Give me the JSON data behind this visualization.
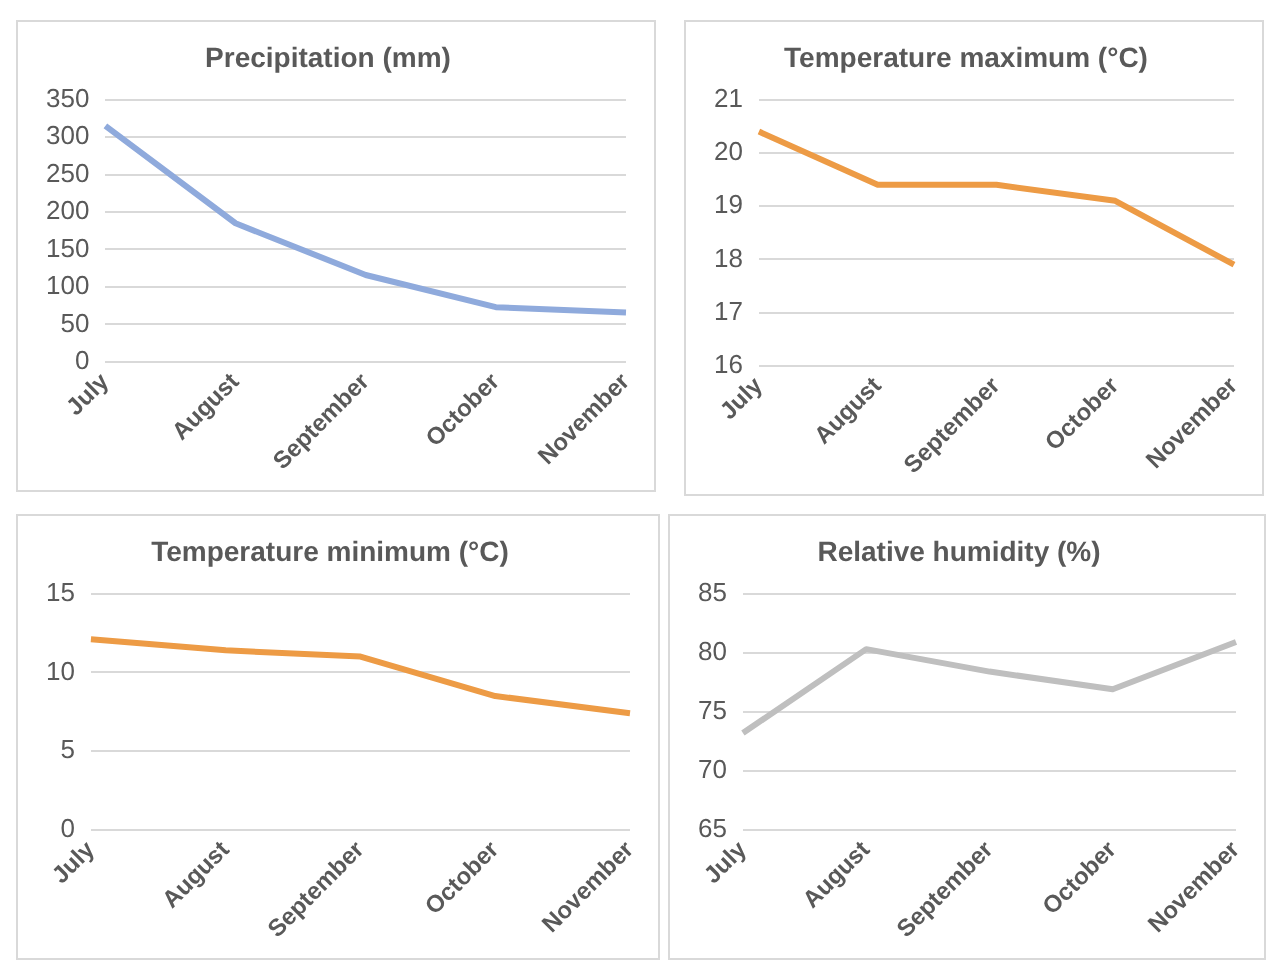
{
  "chart_data": [
    {
      "type": "line",
      "title": "Precipitation (mm)",
      "categories": [
        "July",
        "August",
        "September",
        "October",
        "November"
      ],
      "series": [
        {
          "color": "#8faadc",
          "values": [
            315,
            185,
            116,
            73,
            66
          ]
        }
      ],
      "ylim": [
        0,
        350
      ],
      "yticks": [
        0,
        50,
        100,
        150,
        200,
        250,
        300,
        350
      ],
      "grid": "y",
      "marker": "none"
    },
    {
      "type": "line",
      "title": "Temperature maximum (°C)",
      "categories": [
        "July",
        "August",
        "September",
        "October",
        "November"
      ],
      "series": [
        {
          "color": "#ed9b45",
          "values": [
            20.4,
            19.4,
            19.4,
            19.1,
            17.9
          ]
        }
      ],
      "ylim": [
        16,
        21
      ],
      "yticks": [
        16,
        17,
        18,
        19,
        20,
        21
      ],
      "grid": "y",
      "marker": "none"
    },
    {
      "type": "line",
      "title": "Temperature minimum (°C)",
      "categories": [
        "July",
        "August",
        "September",
        "October",
        "November"
      ],
      "series": [
        {
          "color": "#ed9b45",
          "values": [
            12.1,
            11.4,
            11.0,
            8.5,
            7.4
          ]
        }
      ],
      "ylim": [
        0,
        15
      ],
      "yticks": [
        0,
        5,
        10,
        15
      ],
      "grid": "y",
      "marker": "none"
    },
    {
      "type": "line",
      "title": "Relative humidity (%)",
      "categories": [
        "July",
        "August",
        "September",
        "October",
        "November"
      ],
      "series": [
        {
          "color": "#bfbfbf",
          "values": [
            73.2,
            80.3,
            78.4,
            76.9,
            80.9
          ]
        }
      ],
      "ylim": [
        65,
        85
      ],
      "yticks": [
        65,
        70,
        75,
        80,
        85
      ],
      "grid": "y",
      "marker": "none"
    }
  ]
}
